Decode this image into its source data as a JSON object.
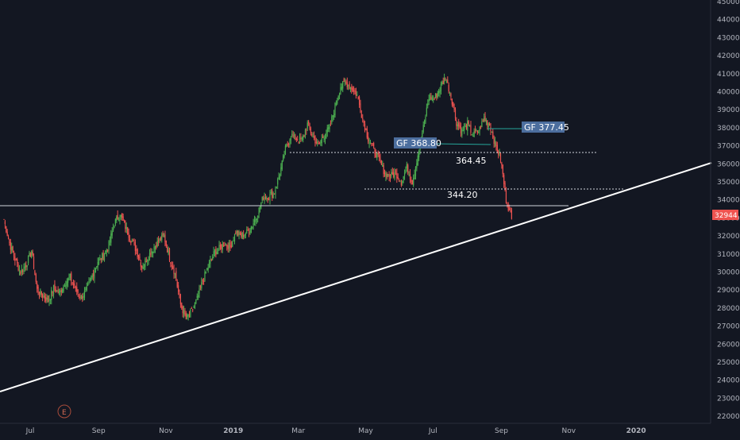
{
  "colors": {
    "background": "#131722",
    "up": "#26a69a",
    "up_bright": "#4caf50",
    "down": "#ef5350",
    "axis_text": "#b2b5be",
    "grid": "#1e222d",
    "trendline": "#ffffff",
    "label_box": "#4c6e9e",
    "price_tag": "#ef5350"
  },
  "chart_data": {
    "type": "candlestick",
    "y_axis": {
      "ticks": [
        "45000",
        "44000",
        "43000",
        "42000",
        "41000",
        "40000",
        "39000",
        "38000",
        "37000",
        "36000",
        "35000",
        "34000",
        "33000",
        "32000",
        "31000",
        "30000",
        "29000",
        "28000",
        "27000",
        "26000",
        "25000",
        "24000",
        "23000",
        "22000"
      ],
      "ylim": [
        21500,
        45000
      ]
    },
    "x_axis": {
      "ticks": [
        "Jul",
        "Sep",
        "Nov",
        "2019",
        "Mar",
        "May",
        "Jul",
        "Sep",
        "Nov",
        "2020"
      ],
      "bold_ticks": [
        "2019",
        "2020"
      ],
      "range_days": [
        0,
        624
      ]
    },
    "tick_days": [
      0,
      62,
      123,
      184,
      243,
      304,
      365,
      427,
      488,
      549
    ],
    "last_price": "32944",
    "last_price_value": 32944,
    "price_path": [
      [
        0,
        32900
      ],
      [
        5,
        31600
      ],
      [
        10,
        30700
      ],
      [
        15,
        30000
      ],
      [
        20,
        30400
      ],
      [
        25,
        31200
      ],
      [
        30,
        29000
      ],
      [
        35,
        28700
      ],
      [
        40,
        28400
      ],
      [
        45,
        29100
      ],
      [
        50,
        28800
      ],
      [
        55,
        29400
      ],
      [
        60,
        29700
      ],
      [
        65,
        29000
      ],
      [
        70,
        28600
      ],
      [
        75,
        29000
      ],
      [
        80,
        29800
      ],
      [
        85,
        30600
      ],
      [
        90,
        30900
      ],
      [
        95,
        31500
      ],
      [
        100,
        32700
      ],
      [
        105,
        33200
      ],
      [
        110,
        32500
      ],
      [
        115,
        31800
      ],
      [
        120,
        31200
      ],
      [
        125,
        30300
      ],
      [
        130,
        30800
      ],
      [
        135,
        31300
      ],
      [
        140,
        31700
      ],
      [
        145,
        32000
      ],
      [
        150,
        30800
      ],
      [
        155,
        29900
      ],
      [
        160,
        28200
      ],
      [
        165,
        27400
      ],
      [
        170,
        27800
      ],
      [
        175,
        28500
      ],
      [
        180,
        29500
      ],
      [
        185,
        30300
      ],
      [
        190,
        31000
      ],
      [
        195,
        31300
      ],
      [
        200,
        31600
      ],
      [
        205,
        31400
      ],
      [
        210,
        32200
      ],
      [
        215,
        32000
      ],
      [
        220,
        32200
      ],
      [
        225,
        32600
      ],
      [
        230,
        33300
      ],
      [
        235,
        34200
      ],
      [
        240,
        34200
      ],
      [
        245,
        34400
      ],
      [
        250,
        35500
      ],
      [
        255,
        36800
      ],
      [
        260,
        37600
      ],
      [
        265,
        37400
      ],
      [
        270,
        37300
      ],
      [
        275,
        38200
      ],
      [
        280,
        37500
      ],
      [
        285,
        37000
      ],
      [
        290,
        37600
      ],
      [
        295,
        38000
      ],
      [
        300,
        39200
      ],
      [
        305,
        40300
      ],
      [
        310,
        40500
      ],
      [
        315,
        40200
      ],
      [
        320,
        39800
      ],
      [
        325,
        38500
      ],
      [
        330,
        37400
      ],
      [
        335,
        36800
      ],
      [
        340,
        36200
      ],
      [
        345,
        35500
      ],
      [
        350,
        35300
      ],
      [
        355,
        35500
      ],
      [
        360,
        35000
      ],
      [
        365,
        35800
      ],
      [
        370,
        35000
      ],
      [
        375,
        36500
      ],
      [
        380,
        38000
      ],
      [
        385,
        39700
      ],
      [
        390,
        39600
      ],
      [
        395,
        40200
      ],
      [
        400,
        40800
      ],
      [
        405,
        39800
      ],
      [
        410,
        38300
      ],
      [
        415,
        37800
      ],
      [
        420,
        38200
      ],
      [
        425,
        37600
      ],
      [
        430,
        37800
      ],
      [
        435,
        38500
      ],
      [
        440,
        38200
      ],
      [
        445,
        37100
      ],
      [
        450,
        36300
      ],
      [
        455,
        34000
      ],
      [
        460,
        33000
      ]
    ],
    "annotations": [
      {
        "text": "GF 377.45",
        "boxed": true
      },
      {
        "text": "GF 368.80",
        "boxed": true
      },
      {
        "text": "364.45",
        "boxed": false
      },
      {
        "text": "344.20",
        "boxed": false
      }
    ],
    "marker": "E"
  }
}
